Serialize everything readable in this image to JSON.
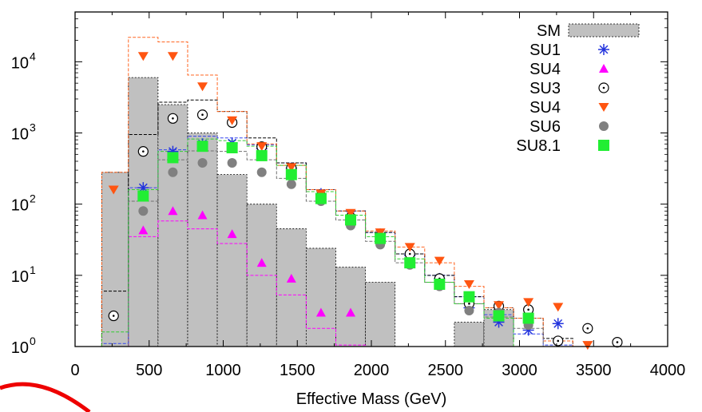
{
  "chart_data": {
    "type": "histogram",
    "title": "",
    "xlabel": "Effective Mass (GeV)",
    "ylabel": "",
    "xlim": [
      0,
      4000
    ],
    "ylim": [
      1,
      50000
    ],
    "yscale": "log",
    "grid": false,
    "legend_position": "top-right",
    "x_ticks": [
      "0",
      "500",
      "1000",
      "1500",
      "2000",
      "2500",
      "3000",
      "3500",
      "4000"
    ],
    "y_ticks": [
      {
        "base": "10",
        "exp": "0",
        "value": 1
      },
      {
        "base": "10",
        "exp": "1",
        "value": 10
      },
      {
        "base": "10",
        "exp": "2",
        "value": 100
      },
      {
        "base": "10",
        "exp": "3",
        "value": 1000
      },
      {
        "base": "10",
        "exp": "4",
        "value": 10000
      }
    ],
    "bin_edges": [
      180,
      360,
      560,
      760,
      960,
      1160,
      1360,
      1560,
      1760,
      1960,
      2160,
      2360,
      2560,
      2760,
      2960,
      3160,
      3360,
      3560,
      3760
    ],
    "background": {
      "name": "SM",
      "color": "#c0c0c0",
      "values": [
        280,
        6000,
        2500,
        1000,
        260,
        100,
        45,
        24,
        13,
        8,
        null,
        null,
        2.2,
        3.3,
        null,
        null,
        null,
        null
      ]
    },
    "series": [
      {
        "name": "SU1",
        "marker": "star",
        "color": "#2233dd",
        "line_color": "#3344ee",
        "x": [
          460,
          660,
          860,
          1060,
          1260,
          1460,
          1660,
          1860,
          2060,
          2260,
          2460,
          2660,
          2860,
          3060,
          3260
        ],
        "y": [
          170,
          550,
          700,
          720,
          600,
          320,
          140,
          70,
          38,
          19,
          9,
          3.5,
          2.2,
          1.7,
          2.1
        ],
        "hist": [
          1.1,
          170,
          580,
          900,
          850,
          680,
          380,
          160,
          80,
          40,
          20,
          10,
          5,
          2.8,
          1.5,
          1.05,
          null,
          null
        ]
      },
      {
        "name": "SU4",
        "marker": "triangle-up",
        "color": "#ff00ff",
        "line_color": "#ff00ff",
        "x": [
          460,
          660,
          860,
          1060,
          1260,
          1460,
          1660,
          1860
        ],
        "y": [
          43,
          80,
          70,
          38,
          15,
          9,
          3,
          3
        ],
        "hist": [
          null,
          35,
          58,
          45,
          28,
          10,
          5.3,
          1.8,
          1.05,
          null,
          null,
          null,
          null,
          null,
          null,
          null,
          null,
          null
        ]
      },
      {
        "name": "SU3",
        "marker": "circle-dot",
        "color": "#000000",
        "line_color": "#000000",
        "x": [
          260,
          460,
          660,
          860,
          1060,
          1260,
          1460,
          1660,
          1860,
          2060,
          2260,
          2460,
          2660,
          2860,
          3060,
          3260,
          3460,
          3660
        ],
        "y": [
          2.7,
          550,
          1600,
          1800,
          1400,
          640,
          320,
          130,
          65,
          30,
          20,
          9,
          4,
          3.7,
          3.3,
          1.2,
          1.8,
          1.15
        ],
        "hist": [
          6,
          950,
          2700,
          2900,
          2000,
          850,
          380,
          160,
          80,
          40,
          20,
          10,
          5,
          3.5,
          2.5,
          1.3,
          null,
          null
        ]
      },
      {
        "name": "SU4",
        "marker": "triangle-down",
        "color": "#ff5511",
        "line_color": "#ff6622",
        "x": [
          260,
          460,
          660,
          860,
          1060,
          1260,
          1460,
          1660,
          1860,
          2060,
          2260,
          2460,
          2660,
          2860,
          3060,
          3260,
          3460
        ],
        "y": [
          160,
          12000,
          12000,
          4500,
          1500,
          650,
          330,
          140,
          75,
          40,
          25,
          16,
          7.5,
          3.8,
          4.2,
          3.6,
          1.05
        ],
        "hist": [
          280,
          22000,
          19000,
          6500,
          2000,
          700,
          350,
          160,
          80,
          42,
          25,
          15,
          7,
          3.5,
          2.5,
          1.2,
          null,
          null
        ]
      },
      {
        "name": "SU6",
        "marker": "filled-circle",
        "color": "#808080",
        "line_color": "#707070",
        "x": [
          460,
          660,
          860,
          1060,
          1260,
          1460,
          1660,
          1860,
          2060,
          2260,
          2460,
          2660,
          2860,
          3060
        ],
        "y": [
          80,
          280,
          380,
          380,
          280,
          190,
          110,
          50,
          27,
          14,
          7,
          3.2,
          3,
          2
        ],
        "hist": [
          null,
          110,
          420,
          560,
          550,
          420,
          230,
          110,
          60,
          30,
          15,
          8,
          4,
          2.6,
          1.8,
          null,
          null,
          null
        ]
      },
      {
        "name": "SU8.1",
        "marker": "filled-square",
        "color": "#22ee33",
        "line_color": "#33cc33",
        "x": [
          460,
          660,
          860,
          1060,
          1260,
          1460,
          1660,
          1860,
          2060,
          2260,
          2460,
          2660,
          2860,
          3060
        ],
        "y": [
          130,
          450,
          650,
          620,
          480,
          260,
          120,
          60,
          33,
          15,
          7.5,
          5,
          2.7,
          2.5
        ],
        "hist": [
          1.6,
          160,
          550,
          820,
          780,
          650,
          350,
          150,
          70,
          35,
          17,
          8,
          4,
          2.5,
          null,
          null,
          null,
          null
        ]
      }
    ]
  }
}
